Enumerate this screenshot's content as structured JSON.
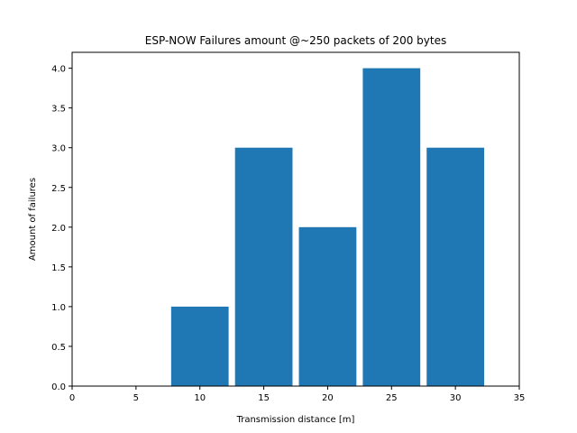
{
  "chart_data": {
    "type": "bar",
    "title": "ESP-NOW Failures amount @~250 packets of 200 bytes",
    "xlabel": "Transmission distance [m]",
    "ylabel": "Amount of failures",
    "x": [
      10,
      15,
      20,
      25,
      30
    ],
    "values": [
      1,
      3,
      2,
      4,
      3
    ],
    "bar_width": 4.5,
    "xlim": [
      0,
      35
    ],
    "ylim": [
      0,
      4.2
    ],
    "xticks": [
      0,
      5,
      10,
      15,
      20,
      25,
      30,
      35
    ],
    "yticks": [
      0.0,
      0.5,
      1.0,
      1.5,
      2.0,
      2.5,
      3.0,
      3.5,
      4.0
    ],
    "xtick_labels": [
      "0",
      "5",
      "10",
      "15",
      "20",
      "25",
      "30",
      "35"
    ],
    "ytick_labels": [
      "0.0",
      "0.5",
      "1.0",
      "1.5",
      "2.0",
      "2.5",
      "3.0",
      "3.5",
      "4.0"
    ],
    "bar_color": "#1f77b4",
    "grid": false,
    "legend": "none"
  }
}
